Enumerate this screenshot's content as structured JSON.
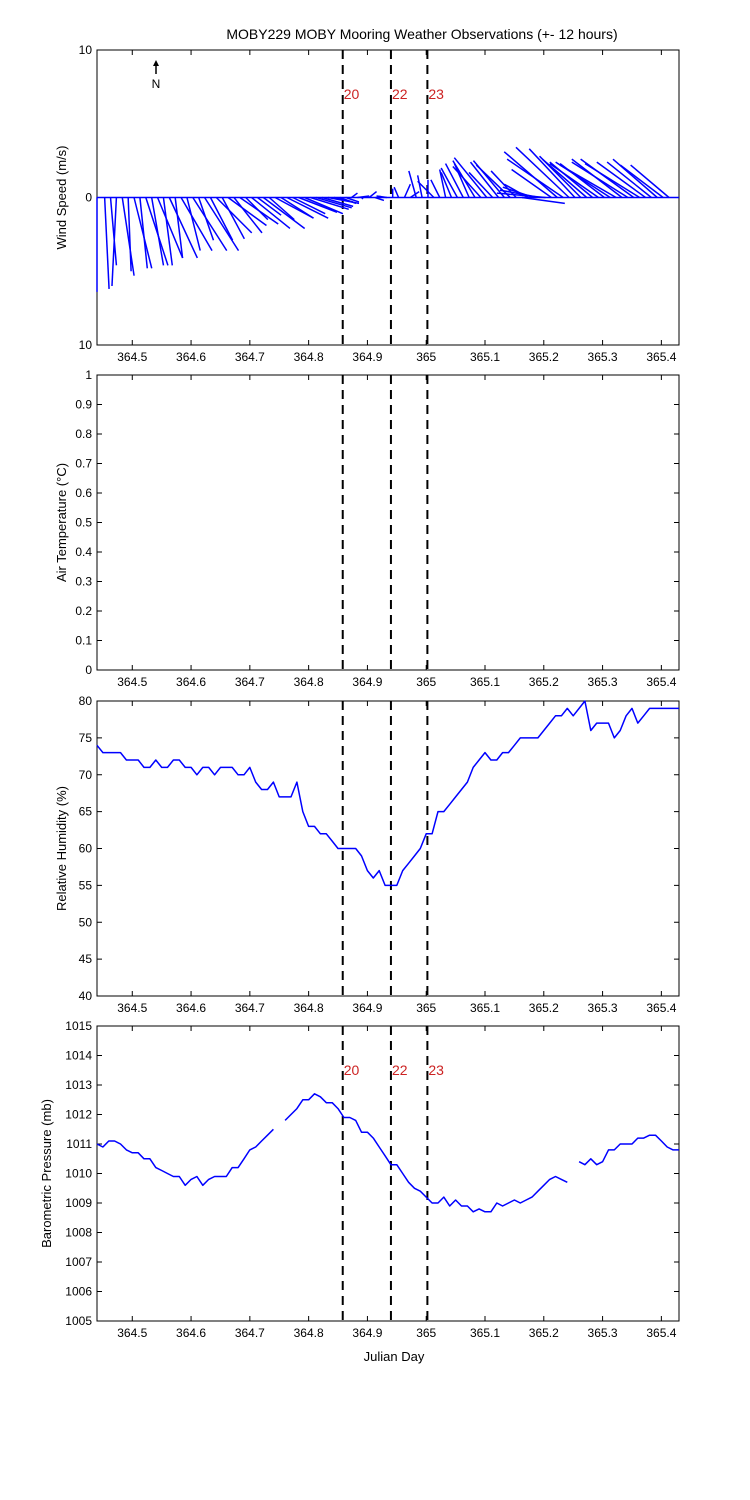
{
  "title": "MOBY229 MOBY Mooring Weather Observations (+- 12 hours)",
  "xlabel": "Julian Day",
  "x_ticks": [
    364.5,
    364.6,
    364.7,
    364.8,
    364.9,
    365,
    365.1,
    365.2,
    365.3,
    365.4
  ],
  "x_tick_labels": [
    "364.5",
    "364.6",
    "364.7",
    "364.8",
    "364.9",
    "365",
    "365.1",
    "365.2",
    "365.3",
    "365.4"
  ],
  "xlim": [
    364.44,
    365.43
  ],
  "colors": {
    "series": "#0000ff",
    "event_label": "#cc2222",
    "axes": "#000000"
  },
  "events": [
    {
      "label": "20",
      "x": 364.858
    },
    {
      "label": "22",
      "x": 364.94
    },
    {
      "label": "23",
      "x": 365.002
    }
  ],
  "north_indicator": {
    "label": "N",
    "icon": "north-arrow-icon"
  },
  "chart_data": [
    {
      "type": "line",
      "subtype": "wind-vector",
      "ylabel": "Wind Speed (m/s)",
      "ylim": [
        -10,
        10
      ],
      "y_ticks": [
        10,
        0,
        -10
      ],
      "y_tick_labels": [
        "10",
        "0",
        "10"
      ],
      "show_event_labels": true,
      "series": [
        {
          "x": [
            364.44,
            364.453,
            364.463,
            364.473,
            364.483,
            364.493,
            364.503,
            364.513,
            364.523,
            364.533,
            364.543,
            364.553,
            364.563,
            364.573,
            364.583,
            364.593,
            364.603,
            364.613,
            364.623,
            364.633,
            364.643,
            364.653,
            364.663,
            364.673,
            364.683,
            364.693,
            364.703,
            364.713,
            364.723,
            364.733,
            364.743,
            364.753,
            364.763,
            364.773,
            364.783,
            364.793,
            364.803,
            364.813,
            364.823,
            364.833,
            364.843,
            364.853,
            364.863,
            364.873,
            364.883,
            364.893,
            364.903,
            364.913,
            364.923,
            364.933,
            364.943,
            364.953,
            364.963,
            364.973,
            364.983,
            364.993,
            365.003,
            365.013,
            365.023,
            365.033,
            365.043,
            365.053,
            365.063,
            365.073,
            365.083,
            365.093,
            365.103,
            365.113,
            365.123,
            365.133,
            365.143,
            365.153,
            365.163,
            365.173,
            365.183,
            365.193,
            365.203,
            365.213,
            365.223,
            365.233,
            365.243,
            365.253,
            365.263,
            365.273,
            365.283,
            365.293,
            365.303,
            365.313,
            365.323,
            365.333,
            365.343,
            365.353,
            365.363,
            365.373,
            365.383,
            365.393,
            365.403,
            365.413,
            365.423
          ],
          "u": [
            0,
            0.3,
            0.4,
            -0.3,
            0.8,
            0.2,
            1.2,
            0.5,
            1.5,
            0.8,
            1.7,
            0.6,
            1.9,
            0.5,
            2.1,
            0.9,
            2.3,
            1,
            2.3,
            1.5,
            2.4,
            1.5,
            2.6,
            1.9,
            2.6,
            1.5,
            2.6,
            1.6,
            2.8,
            1.7,
            2.6,
            2.2,
            2.8,
            2.2,
            2.6,
            2.6,
            2.6,
            2.4,
            2.1,
            2.1,
            1.3,
            1.1,
            0.9,
            0.4,
            0.8,
            -0.1,
            0.5,
            0.6,
            -0.1,
            -0.7,
            0,
            -0.3,
            0.4,
            0.6,
            -0.5,
            -0.3,
            0,
            -1.1,
            -0.6,
            -0.4,
            -0.7,
            -1.1,
            -1.2,
            -1,
            -1.5,
            -1.9,
            -2.2,
            -1.6,
            -1.9,
            -2.1,
            -2.3,
            -1.7,
            2.9,
            -1.6,
            -2.1,
            -2.7,
            -3.3,
            -2.7,
            -3.6,
            -3.8,
            -3.6,
            -3.1,
            -2.8,
            -3,
            -2.9,
            -3.3,
            -3,
            -3.7,
            -3.8,
            -3.4,
            -3.8,
            -3.6,
            -3.7,
            -3.3,
            -3,
            -3,
            -2.9,
            -2.6,
            0
          ],
          "v": [
            -6.4,
            -6.2,
            -4.6,
            -6,
            -5.3,
            -5,
            -4.8,
            -4.8,
            -4.6,
            -4.6,
            -4.1,
            -4.6,
            -4.1,
            -4.1,
            -3.6,
            -3.6,
            -3.6,
            -2.9,
            -3.6,
            -2.9,
            -2.4,
            -2.8,
            -1.9,
            -2.4,
            -1.8,
            -1.5,
            -2.1,
            -1.2,
            -2.1,
            -1.5,
            -1.4,
            -1.4,
            -1.4,
            -1.1,
            -1,
            -1.1,
            -0.8,
            -0.7,
            -0.6,
            -0.4,
            -0.3,
            -0.4,
            -0.3,
            0.3,
            0.1,
            -0.1,
            0.4,
            -0.2,
            0.1,
            0.1,
            0.6,
            0.7,
            0.9,
            0.4,
            1.8,
            1.5,
            1.2,
            1.1,
            1.2,
            1.9,
            1.7,
            2,
            2.3,
            2.3,
            2.5,
            2.1,
            2.7,
            1.7,
            2.4,
            2.5,
            2.2,
            1.8,
            -0.4,
            0.9,
            0.7,
            0.5,
            0.3,
            1.9,
            3.1,
            2.6,
            3.4,
            3.3,
            2.8,
            2.6,
            2.4,
            2.3,
            2.3,
            2.4,
            2.2,
            2.6,
            2.4,
            2.6,
            2.3,
            2.4,
            2.4,
            2.6,
            2.2,
            2.2,
            0
          ]
        }
      ]
    },
    {
      "type": "line",
      "ylabel": "Air Temperature (°C)",
      "ylim": [
        0,
        1
      ],
      "y_ticks": [
        0,
        0.1,
        0.2,
        0.3,
        0.4,
        0.5,
        0.6,
        0.7,
        0.8,
        0.9,
        1
      ],
      "y_tick_labels": [
        "0",
        "0.1",
        "0.2",
        "0.3",
        "0.4",
        "0.5",
        "0.6",
        "0.7",
        "0.8",
        "0.9",
        "1"
      ],
      "show_event_labels": false,
      "series": []
    },
    {
      "type": "line",
      "ylabel": "Relative Humidity (%)",
      "ylim": [
        40,
        80
      ],
      "y_ticks": [
        40,
        45,
        50,
        55,
        60,
        65,
        70,
        75,
        80
      ],
      "y_tick_labels": [
        "40",
        "45",
        "50",
        "55",
        "60",
        "65",
        "70",
        "75",
        "80"
      ],
      "show_event_labels": false,
      "series": [
        {
          "segments": [
            {
              "x": [
                364.44,
                364.45,
                364.46,
                364.47,
                364.48,
                364.49,
                364.5,
                364.51,
                364.52,
                364.53,
                364.54,
                364.55,
                364.56,
                364.57,
                364.58,
                364.59,
                364.6,
                364.61,
                364.62,
                364.63,
                364.64,
                364.65,
                364.66,
                364.67,
                364.68,
                364.69,
                364.7,
                364.71,
                364.72,
                364.73,
                364.74,
                364.75,
                364.76,
                364.77,
                364.78,
                364.79,
                364.8,
                364.81,
                364.82,
                364.83,
                364.84,
                364.85,
                364.86,
                364.87,
                364.88,
                364.89,
                364.9,
                364.91,
                364.92,
                364.93,
                364.94,
                364.95,
                364.96,
                364.97,
                364.98,
                364.99,
                365.0,
                365.01,
                365.02,
                365.03,
                365.04,
                365.05,
                365.06,
                365.07,
                365.08,
                365.09,
                365.1,
                365.11,
                365.12,
                365.13,
                365.14,
                365.15,
                365.16,
                365.17,
                365.18,
                365.19,
                365.2,
                365.21,
                365.22,
                365.23,
                365.24,
                365.25,
                365.26,
                365.27,
                365.28,
                365.29,
                365.3,
                365.31,
                365.32,
                365.33,
                365.34,
                365.35,
                365.36,
                365.37,
                365.38,
                365.39,
                365.4,
                365.41,
                365.42,
                365.43
              ],
              "y": [
                74,
                73,
                73,
                73,
                73,
                72,
                72,
                72,
                71,
                71,
                72,
                71,
                71,
                72,
                72,
                71,
                71,
                70,
                71,
                71,
                70,
                71,
                71,
                71,
                70,
                70,
                71,
                69,
                68,
                68,
                69,
                67,
                67,
                67,
                69,
                65,
                63,
                63,
                62,
                62,
                61,
                60,
                60,
                60,
                60,
                59,
                57,
                56,
                57,
                55,
                55,
                55,
                57,
                58,
                59,
                60,
                62,
                62,
                65,
                65,
                66,
                67,
                68,
                69,
                71,
                72,
                73,
                72,
                72,
                73,
                73,
                74,
                75,
                75,
                75,
                75,
                76,
                77,
                78,
                78,
                79,
                78,
                79,
                80,
                76,
                77,
                77,
                77,
                75,
                76,
                78,
                79,
                77,
                78,
                79,
                79,
                79,
                79,
                79,
                79
              ]
            }
          ]
        }
      ]
    },
    {
      "type": "line",
      "ylabel": "Barometric Pressure (mb)",
      "ylim": [
        1005,
        1015
      ],
      "y_ticks": [
        1005,
        1006,
        1007,
        1008,
        1009,
        1010,
        1011,
        1012,
        1013,
        1014,
        1015
      ],
      "y_tick_labels": [
        "1005",
        "1006",
        "1007",
        "1008",
        "1009",
        "1010",
        "1011",
        "1012",
        "1013",
        "1014",
        "1015"
      ],
      "show_event_labels": true,
      "series": [
        {
          "segments": [
            {
              "x": [
                364.44,
                364.45,
                364.46,
                364.47,
                364.48,
                364.49,
                364.5,
                364.51,
                364.52,
                364.53,
                364.54,
                364.55,
                364.56,
                364.57,
                364.58,
                364.59,
                364.6,
                364.61,
                364.62,
                364.63,
                364.64,
                364.65,
                364.66,
                364.67,
                364.68,
                364.69,
                364.7,
                364.71,
                364.72,
                364.73,
                364.74
              ],
              "y": [
                1011.0,
                1010.9,
                1011.1,
                1011.1,
                1011.0,
                1010.8,
                1010.7,
                1010.7,
                1010.5,
                1010.5,
                1010.2,
                1010.1,
                1010.0,
                1009.9,
                1009.9,
                1009.6,
                1009.8,
                1009.9,
                1009.6,
                1009.8,
                1009.9,
                1009.9,
                1009.9,
                1010.2,
                1010.2,
                1010.5,
                1010.8,
                1010.9,
                1011.1,
                1011.3,
                1011.5
              ]
            },
            {
              "x": [
                364.76,
                364.77,
                364.78,
                364.79,
                364.8,
                364.81,
                364.82,
                364.83,
                364.84,
                364.85,
                364.86,
                364.87,
                364.88,
                364.89,
                364.9,
                364.91,
                364.92,
                364.93,
                364.94,
                364.95,
                364.96,
                364.97,
                364.98,
                364.99,
                365.0,
                365.01,
                365.02,
                365.03,
                365.04,
                365.05,
                365.06,
                365.07,
                365.08,
                365.09,
                365.1,
                365.11,
                365.12,
                365.13,
                365.14,
                365.15,
                365.16,
                365.17,
                365.18,
                365.19,
                365.2,
                365.21,
                365.22,
                365.23,
                365.24
              ],
              "y": [
                1011.8,
                1012.0,
                1012.2,
                1012.5,
                1012.5,
                1012.7,
                1012.6,
                1012.4,
                1012.4,
                1012.2,
                1011.9,
                1011.9,
                1011.8,
                1011.4,
                1011.4,
                1011.2,
                1010.9,
                1010.6,
                1010.3,
                1010.3,
                1010.0,
                1009.7,
                1009.5,
                1009.4,
                1009.2,
                1009.0,
                1009.0,
                1009.2,
                1008.9,
                1009.1,
                1008.9,
                1008.9,
                1008.7,
                1008.8,
                1008.7,
                1008.7,
                1009.0,
                1008.9,
                1009.0,
                1009.1,
                1009.0,
                1009.1,
                1009.2,
                1009.4,
                1009.6,
                1009.8,
                1009.9,
                1009.8,
                1009.7
              ]
            },
            {
              "x": [
                365.26,
                365.27,
                365.28,
                365.29,
                365.3,
                365.31,
                365.32,
                365.33,
                365.34,
                365.35,
                365.36,
                365.37,
                365.38,
                365.39,
                365.4,
                365.41,
                365.42,
                365.43
              ],
              "y": [
                1010.4,
                1010.3,
                1010.5,
                1010.3,
                1010.4,
                1010.8,
                1010.8,
                1011.0,
                1011.0,
                1011.0,
                1011.2,
                1011.2,
                1011.3,
                1011.3,
                1011.1,
                1010.9,
                1010.8,
                1010.8
              ]
            }
          ]
        }
      ]
    }
  ]
}
